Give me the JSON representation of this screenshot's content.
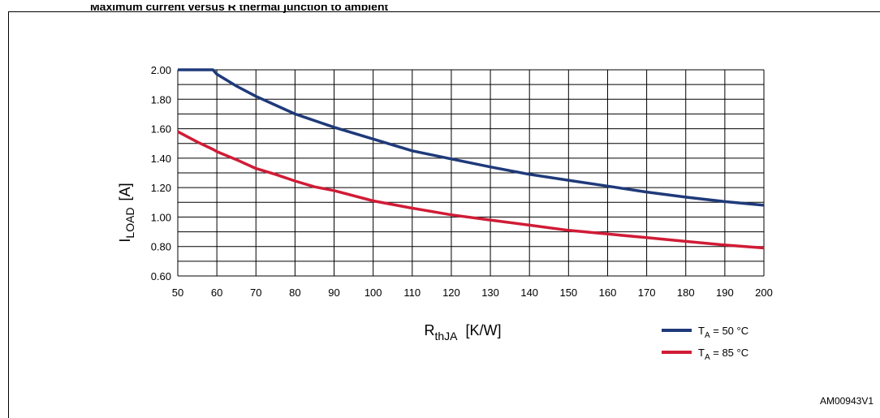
{
  "header": {
    "title": "Maximum current versus R thermal junction to ambient"
  },
  "figure_code": "AM00943V1",
  "chart_data": {
    "type": "line",
    "x": [
      50,
      55,
      59,
      60,
      65,
      70,
      75,
      80,
      85,
      90,
      100,
      110,
      120,
      130,
      140,
      150,
      160,
      170,
      180,
      190,
      200
    ],
    "series": [
      {
        "name": "TA = 50 °C",
        "color": "#1f3a7a",
        "values": [
          2.0,
          2.0,
          2.0,
          1.97,
          1.89,
          1.82,
          1.76,
          1.7,
          1.655,
          1.61,
          1.53,
          1.45,
          1.395,
          1.34,
          1.29,
          1.25,
          1.21,
          1.17,
          1.135,
          1.105,
          1.08
        ]
      },
      {
        "name": "TA = 85 °C",
        "color": "#d01c36",
        "values": [
          1.58,
          1.51,
          1.46,
          1.445,
          1.39,
          1.33,
          1.29,
          1.245,
          1.205,
          1.18,
          1.11,
          1.06,
          1.015,
          0.98,
          0.945,
          0.91,
          0.885,
          0.86,
          0.835,
          0.81,
          0.79
        ]
      }
    ],
    "xlim": [
      50,
      200
    ],
    "ylim": [
      0.6,
      2.0
    ],
    "xticks": [
      "50",
      "60",
      "70",
      "80",
      "90",
      "100",
      "110",
      "120",
      "130",
      "140",
      "150",
      "160",
      "170",
      "180",
      "190",
      "200"
    ],
    "yticks": [
      "0.60",
      "0.80",
      "1.00",
      "1.20",
      "1.40",
      "1.60",
      "1.80",
      "2.00"
    ],
    "xlabel": {
      "main": "R",
      "sub": "thJA",
      "unit": "[K/W]"
    },
    "ylabel": {
      "main": "I",
      "sub": "LOAD",
      "unit": "[A]"
    },
    "legend": [
      {
        "main": "T",
        "sub": "A",
        "rest": " = 50 °C",
        "color": "#1f3a7a"
      },
      {
        "main": "T",
        "sub": "A",
        "rest": " = 85 °C",
        "color": "#d01c36"
      }
    ],
    "grid": true,
    "legend_position": "bottom-right"
  }
}
